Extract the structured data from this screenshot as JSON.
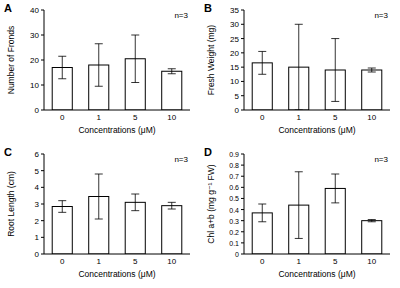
{
  "chart_data": [
    {
      "type": "bar",
      "title": "A",
      "annotation": "n=3",
      "x_label": "Concentrations (μM)",
      "y_label": "Number of Fronds",
      "categories": [
        "0",
        "1",
        "5",
        "10"
      ],
      "values": [
        17,
        18,
        20.5,
        15.5
      ],
      "errors": [
        4.5,
        8.5,
        9.5,
        1
      ],
      "color": "#ffffff",
      "ylim": [
        0,
        40
      ],
      "yticks": [
        0,
        10,
        20,
        30,
        40
      ],
      "grid": false
    },
    {
      "type": "bar",
      "title": "B",
      "annotation": "n=3",
      "x_label": "Concentrations (μM)",
      "y_label": "Fresh Weight (mg)",
      "categories": [
        "0",
        "1",
        "5",
        "10"
      ],
      "values": [
        16.5,
        15,
        14,
        14
      ],
      "errors": [
        4,
        15,
        11,
        0.7
      ],
      "color": "#ffffff",
      "ylim": [
        0,
        35
      ],
      "yticks": [
        0,
        5,
        10,
        15,
        20,
        25,
        30,
        35
      ],
      "grid": false
    },
    {
      "type": "bar",
      "title": "C",
      "annotation": "n=3",
      "x_label": "Concentrations (μM)",
      "y_label": "Root Length (cm)",
      "categories": [
        "0",
        "1",
        "5",
        "10"
      ],
      "values": [
        2.85,
        3.45,
        3.1,
        2.9
      ],
      "errors": [
        0.35,
        1.35,
        0.5,
        0.2
      ],
      "color": "#ffffff",
      "ylim": [
        0,
        6
      ],
      "yticks": [
        0,
        1,
        2,
        3,
        4,
        5,
        6
      ],
      "grid": false
    },
    {
      "type": "bar",
      "title": "D",
      "annotation": "n=3",
      "x_label": "Concentrations (μM)",
      "y_label": "Chl a+b (mg g⁻¹ FW)",
      "categories": [
        "0",
        "1",
        "5",
        "10"
      ],
      "values": [
        0.37,
        0.44,
        0.59,
        0.3
      ],
      "errors": [
        0.08,
        0.3,
        0.13,
        0.01
      ],
      "color": "#ffffff",
      "ylim": [
        0,
        0.9
      ],
      "yticks": [
        0,
        0.1,
        0.2,
        0.3,
        0.4,
        0.5,
        0.6,
        0.7,
        0.8,
        0.9
      ],
      "grid": false
    }
  ]
}
